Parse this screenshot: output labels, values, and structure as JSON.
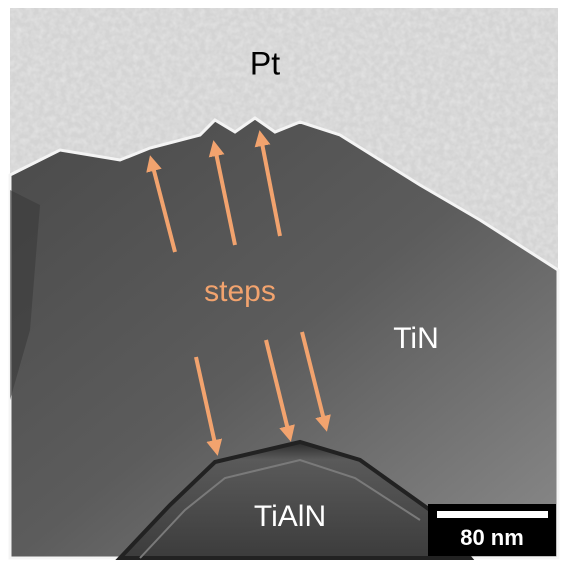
{
  "labels": {
    "pt": "Pt",
    "steps": "steps",
    "tin": "TiN",
    "tialn": "TiAlN"
  },
  "scale_bar": {
    "label": "80 nm"
  }
}
